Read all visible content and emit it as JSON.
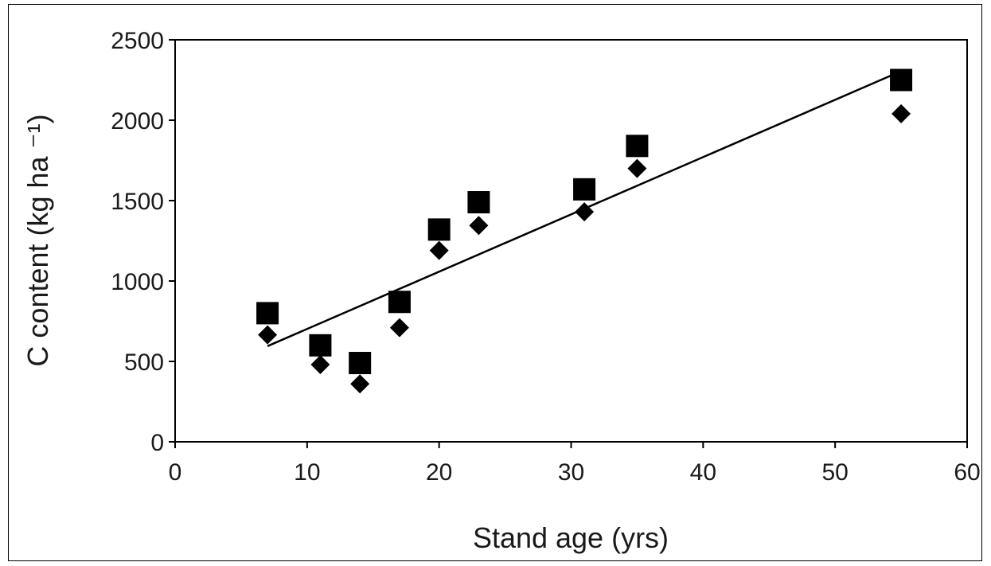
{
  "chart_data": {
    "type": "scatter",
    "title": "",
    "xlabel": "Stand age (yrs)",
    "ylabel": "C content (kg ha ⁻¹)",
    "xlim": [
      0,
      60
    ],
    "ylim": [
      0,
      2500
    ],
    "x_ticks": [
      "0",
      "10",
      "20",
      "30",
      "40",
      "50",
      "60"
    ],
    "y_ticks": [
      "0",
      "500",
      "1000",
      "1500",
      "2000",
      "2500"
    ],
    "grid": false,
    "legend": "none",
    "series": [
      {
        "marker": "square",
        "color": "#000000",
        "points": [
          [
            7,
            800
          ],
          [
            11,
            600
          ],
          [
            14,
            490
          ],
          [
            17,
            870
          ],
          [
            20,
            1320
          ],
          [
            23,
            1490
          ],
          [
            31,
            1570
          ],
          [
            35,
            1840
          ],
          [
            55,
            2250
          ]
        ]
      },
      {
        "marker": "diamond",
        "color": "#000000",
        "points": [
          [
            7,
            665
          ],
          [
            11,
            480
          ],
          [
            14,
            360
          ],
          [
            17,
            710
          ],
          [
            20,
            1190
          ],
          [
            23,
            1345
          ],
          [
            31,
            1430
          ],
          [
            35,
            1700
          ],
          [
            55,
            2040
          ]
        ]
      }
    ],
    "trendline": {
      "x": [
        7,
        55
      ],
      "y": [
        595,
        2305
      ]
    }
  }
}
